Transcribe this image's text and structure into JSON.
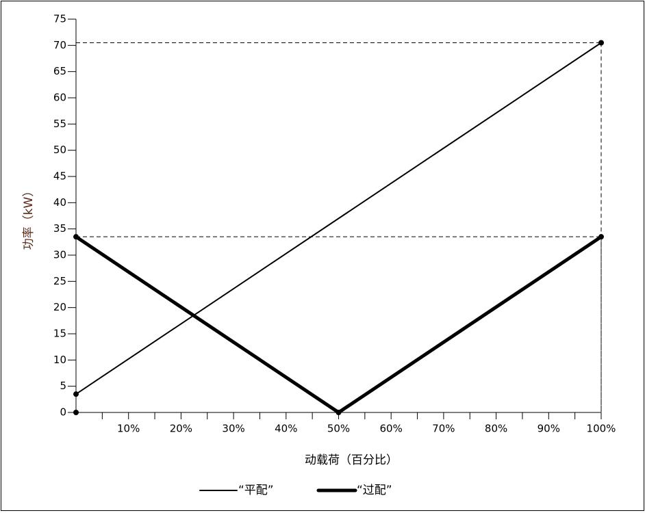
{
  "chart_data": {
    "type": "line",
    "x_label": "动载荷（百分比）",
    "y_label": "功率（kW）",
    "xlim": [
      0,
      100
    ],
    "ylim": [
      0,
      75
    ],
    "xticks": [
      {
        "value": 10,
        "label": "10%"
      },
      {
        "value": 20,
        "label": "20%"
      },
      {
        "value": 30,
        "label": "30%"
      },
      {
        "value": 40,
        "label": "40%"
      },
      {
        "value": 50,
        "label": "50%"
      },
      {
        "value": 60,
        "label": "60%"
      },
      {
        "value": 70,
        "label": "70%"
      },
      {
        "value": 80,
        "label": "80%"
      },
      {
        "value": 90,
        "label": "90%"
      },
      {
        "value": 100,
        "label": "100%"
      }
    ],
    "xminor_ticks": [
      5,
      15,
      25,
      35,
      45,
      55,
      65,
      75,
      85,
      95
    ],
    "yticks": [
      0,
      5,
      10,
      15,
      20,
      25,
      30,
      35,
      40,
      45,
      50,
      55,
      60,
      65,
      70,
      75
    ],
    "legend": "bottom",
    "reference_lines": true,
    "series": [
      {
        "name": "“平配”",
        "color": "#000000",
        "line_width": 2,
        "x": [
          0,
          100
        ],
        "values": [
          3.5,
          70.5
        ]
      },
      {
        "name": "“过配”",
        "color": "#000000",
        "line_width": 5,
        "x": [
          0,
          50,
          100
        ],
        "values": [
          33.5,
          0,
          33.5
        ]
      }
    ]
  }
}
